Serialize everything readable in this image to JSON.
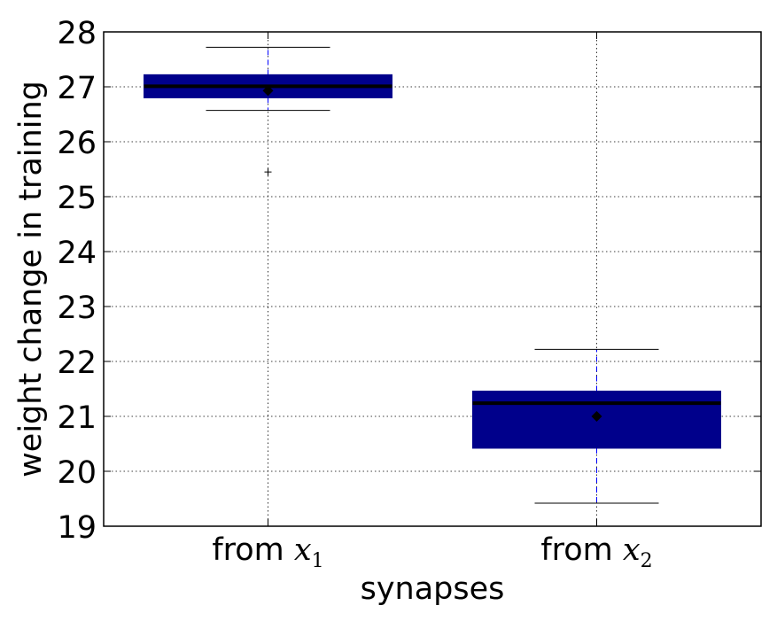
{
  "chart_data": {
    "type": "box",
    "title": "",
    "xlabel": "synapses",
    "ylabel": "weight change in training",
    "ylim": [
      19,
      28
    ],
    "yticks": [
      19,
      20,
      21,
      22,
      23,
      24,
      25,
      26,
      27,
      28
    ],
    "grid": true,
    "box_color": "#00008B",
    "whisker_color": "#0000FF",
    "categories": [
      {
        "prefix": "from ",
        "var": "x",
        "sub": "1"
      },
      {
        "prefix": "from ",
        "var": "x",
        "sub": "2"
      }
    ],
    "boxes": [
      {
        "whisker_low": 26.57,
        "q1": 26.8,
        "median": 27.01,
        "q3": 27.22,
        "whisker_high": 27.72,
        "mean": 26.93,
        "outliers": [
          25.45
        ]
      },
      {
        "whisker_low": 19.42,
        "q1": 20.42,
        "median": 21.24,
        "q3": 21.46,
        "whisker_high": 22.22,
        "mean": 21.0,
        "outliers": []
      }
    ]
  }
}
